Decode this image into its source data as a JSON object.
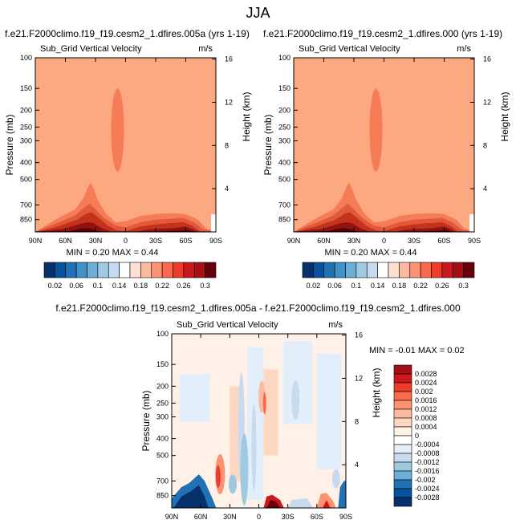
{
  "page": {
    "title": "JJA"
  },
  "chart_data": [
    {
      "type": "heatmap",
      "title": "f.e21.F2000climo.f19_f19.cesm2_1.dfires.005a (yrs 1-19)",
      "subtitle": "Sub_Grid Vertical Velocity",
      "units": "m/s",
      "xlabel": "",
      "ylabel": "Pressure (mb)",
      "ylabel_right": "Height (km)",
      "x_ticks": [
        "90N",
        "60N",
        "30N",
        "0",
        "30S",
        "60S",
        "90S"
      ],
      "y_ticks": [
        "100",
        "150",
        "200",
        "250",
        "300",
        "400",
        "500",
        "700",
        "850"
      ],
      "y_right_ticks": [
        "16",
        "12",
        "8",
        "4"
      ],
      "xlim": [
        90,
        -90
      ],
      "ylim": [
        1000,
        100
      ],
      "min_label": "MIN =  0.20  MAX =  0.44",
      "colorbar": {
        "orientation": "horizontal",
        "labels": [
          "0.02",
          "0.06",
          "0.1",
          "0.14",
          "0.18",
          "0.22",
          "0.26",
          "0.3"
        ],
        "colors": [
          "#08306b",
          "#08519c",
          "#2171b5",
          "#4292c6",
          "#6baed6",
          "#9ecae1",
          "#c6dbef",
          "#ffffff",
          "#fee0d2",
          "#fcbba1",
          "#fc9272",
          "#fb6a4a",
          "#ef3b2c",
          "#cb181d",
          "#a50f15",
          "#67000d"
        ]
      }
    },
    {
      "type": "heatmap",
      "title": "f.e21.F2000climo.f19_f19.cesm2_1.dfires.000 (yrs 1-19)",
      "subtitle": "Sub_Grid Vertical Velocity",
      "units": "m/s",
      "xlabel": "",
      "ylabel": "Pressure (mb)",
      "ylabel_right": "Height (km)",
      "x_ticks": [
        "90N",
        "60N",
        "30N",
        "0",
        "30S",
        "60S",
        "90S"
      ],
      "y_ticks": [
        "100",
        "150",
        "200",
        "250",
        "300",
        "400",
        "500",
        "700",
        "850"
      ],
      "y_right_ticks": [
        "16",
        "12",
        "8",
        "4"
      ],
      "xlim": [
        90,
        -90
      ],
      "ylim": [
        1000,
        100
      ],
      "min_label": "MIN =  0.20  MAX =  0.44",
      "colorbar": {
        "orientation": "horizontal",
        "labels": [
          "0.02",
          "0.06",
          "0.1",
          "0.14",
          "0.18",
          "0.22",
          "0.26",
          "0.3"
        ]
      }
    },
    {
      "type": "heatmap",
      "title": "f.e21.F2000climo.f19_f19.cesm2_1.dfires.005a - f.e21.F2000climo.f19_f19.cesm2_1.dfires.000",
      "subtitle": "Sub_Grid Vertical Velocity",
      "units": "m/s",
      "xlabel": "",
      "ylabel": "Pressure (mb)",
      "ylabel_right": "Height (km)",
      "x_ticks": [
        "90N",
        "60N",
        "30N",
        "0",
        "30S",
        "60S",
        "90S"
      ],
      "y_ticks": [
        "100",
        "150",
        "200",
        "250",
        "300",
        "400",
        "500",
        "700",
        "850"
      ],
      "y_right_ticks": [
        "16",
        "12",
        "8",
        "4"
      ],
      "xlim": [
        90,
        -90
      ],
      "ylim": [
        1000,
        100
      ],
      "min_label": "MIN = -0.01  MAX =  0.02",
      "colorbar": {
        "orientation": "vertical",
        "labels": [
          "0.0028",
          "0.0024",
          "0.002",
          "0.0016",
          "0.0012",
          "0.0008",
          "0.0004",
          "0",
          "-0.0004",
          "-0.0008",
          "-0.0012",
          "-0.0016",
          "-0.002",
          "-0.0024",
          "-0.0028"
        ],
        "colors": [
          "#a50f15",
          "#cb181d",
          "#ef3b2c",
          "#fb6a4a",
          "#fc9272",
          "#fcbba1",
          "#fdd7c2",
          "#fff1e8",
          "#ffffff",
          "#e3eefb",
          "#c6dbef",
          "#9ecae1",
          "#6baed6",
          "#2171b5",
          "#08519c",
          "#08306b"
        ]
      }
    }
  ]
}
